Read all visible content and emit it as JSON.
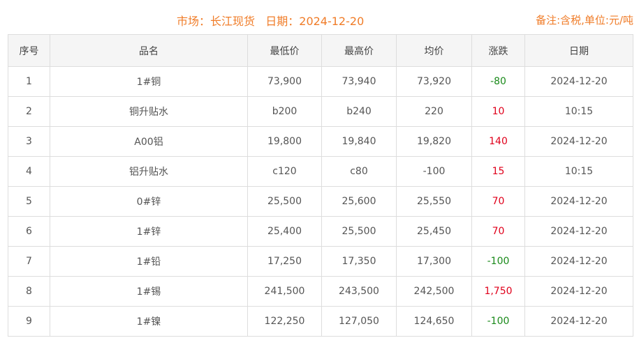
{
  "header": {
    "title": "市场：长江现货   日期：2024-12-20",
    "note": "备注:含税,单位:元/吨"
  },
  "columns": [
    "序号",
    "品名",
    "最低价",
    "最高价",
    "均价",
    "涨跌",
    "日期"
  ],
  "colors": {
    "up": "#e0001b",
    "down": "#1a8a1a",
    "accent": "#f07c28"
  },
  "rows": [
    [
      "1",
      "1#铜",
      "73,900",
      "73,940",
      "73,920",
      "-80",
      "2024-12-20"
    ],
    [
      "2",
      "铜升贴水",
      "b200",
      "b240",
      "220",
      "10",
      "10:15"
    ],
    [
      "3",
      "A00铝",
      "19,800",
      "19,840",
      "19,820",
      "140",
      "2024-12-20"
    ],
    [
      "4",
      "铝升贴水",
      "c120",
      "c80",
      "-100",
      "15",
      "10:15"
    ],
    [
      "5",
      "0#锌",
      "25,500",
      "25,600",
      "25,550",
      "70",
      "2024-12-20"
    ],
    [
      "6",
      "1#锌",
      "25,400",
      "25,500",
      "25,450",
      "70",
      "2024-12-20"
    ],
    [
      "7",
      "1#铅",
      "17,250",
      "17,350",
      "17,300",
      "-100",
      "2024-12-20"
    ],
    [
      "8",
      "1#锡",
      "241,500",
      "243,500",
      "242,500",
      "1,750",
      "2024-12-20"
    ],
    [
      "9",
      "1#镍",
      "122,250",
      "127,050",
      "124,650",
      "-100",
      "2024-12-20"
    ]
  ]
}
